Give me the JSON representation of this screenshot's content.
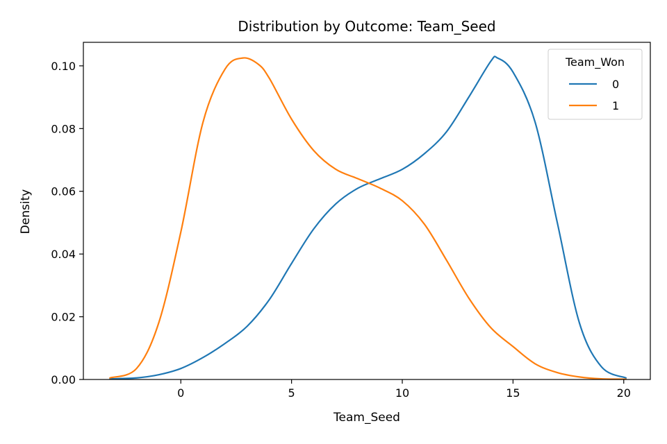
{
  "chart_data": {
    "type": "line",
    "title": "Distribution by Outcome: Team_Seed",
    "xlabel": "Team_Seed",
    "ylabel": "Density",
    "xlim": [
      -4.4,
      21.2
    ],
    "ylim": [
      0,
      0.1075
    ],
    "xticks": [
      0,
      5,
      10,
      15,
      20
    ],
    "yticks": [
      0.0,
      0.02,
      0.04,
      0.06,
      0.08,
      0.1
    ],
    "ytick_labels": [
      "0.00",
      "0.02",
      "0.04",
      "0.06",
      "0.08",
      "0.10"
    ],
    "grid": false,
    "legend": {
      "title": "Team_Won",
      "position": "top-right"
    },
    "series": [
      {
        "name": "0",
        "color": "#1f77b4",
        "x": [
          -3.2,
          -2,
          -1,
          0,
          1,
          2,
          3,
          4,
          5,
          6,
          7,
          8,
          9,
          10,
          11,
          12,
          13,
          14,
          14.3,
          15,
          16,
          17,
          18,
          19,
          20.1
        ],
        "y": [
          0.0002,
          0.0005,
          0.0015,
          0.0035,
          0.007,
          0.0115,
          0.017,
          0.0255,
          0.037,
          0.048,
          0.056,
          0.061,
          0.064,
          0.067,
          0.072,
          0.079,
          0.09,
          0.1015,
          0.1025,
          0.098,
          0.082,
          0.05,
          0.018,
          0.004,
          0.0005
        ]
      },
      {
        "name": "1",
        "color": "#ff7f0e",
        "x": [
          -3.2,
          -2,
          -1,
          0,
          1,
          2,
          2.8,
          3.5,
          4,
          5,
          6,
          7,
          8,
          9,
          10,
          11,
          12,
          13,
          14,
          15,
          16,
          17,
          18,
          19,
          20.1
        ],
        "y": [
          0.0005,
          0.0035,
          0.018,
          0.047,
          0.082,
          0.099,
          0.1025,
          0.1005,
          0.096,
          0.083,
          0.073,
          0.067,
          0.064,
          0.061,
          0.057,
          0.0495,
          0.038,
          0.026,
          0.0165,
          0.0105,
          0.005,
          0.0022,
          0.0008,
          0.0002,
          0.0001
        ]
      }
    ]
  }
}
